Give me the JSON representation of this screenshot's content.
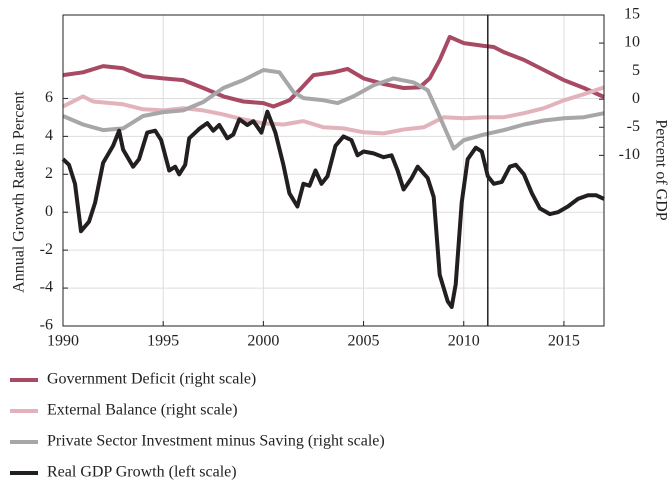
{
  "chart_data": {
    "type": "line",
    "y_label": "Annual Growth Rate in Percent",
    "y2_label": "Percent of GDP",
    "xlim": [
      1990,
      2017
    ],
    "xticks": [
      1990,
      1995,
      2000,
      2005,
      2010,
      2015
    ],
    "ylim": [
      -6,
      10.4
    ],
    "yticks": [
      -6,
      -4,
      -2,
      0,
      2,
      4,
      6
    ],
    "y2lim": [
      -40.4,
      15
    ],
    "y2ticks": [
      -10,
      -5,
      0,
      5,
      10,
      15
    ],
    "grid": true,
    "vline": 2011.2,
    "series": [
      {
        "name": "Government Deficit (right scale)",
        "color": "#a84a63",
        "axis": "y2",
        "x": [
          1990,
          1991,
          1992,
          1993,
          1994,
          1995,
          1996,
          1997,
          1998,
          1999,
          2000,
          2000.5,
          2001.3,
          2001.8,
          2002.5,
          2003.5,
          2004.2,
          2005,
          2006,
          2007,
          2007.8,
          2008.3,
          2008.8,
          2009.3,
          2010,
          2011,
          2011.5,
          2012,
          2013,
          2014,
          2015,
          2016,
          2017
        ],
        "values": [
          4.3,
          4.8,
          5.9,
          5.5,
          4.1,
          3.7,
          3.4,
          2.0,
          0.5,
          -0.4,
          -0.7,
          -1.3,
          -0.2,
          1.6,
          4.3,
          4.8,
          5.4,
          3.7,
          2.7,
          2.0,
          2.1,
          3.7,
          7.0,
          11.1,
          10.0,
          9.5,
          9.3,
          8.4,
          7.0,
          5.2,
          3.4,
          2.0,
          0.4
        ]
      },
      {
        "name": "External Balance (right scale)",
        "color": "#e3b3bb",
        "axis": "y2",
        "x": [
          1990,
          1991,
          1991.5,
          1993,
          1994,
          1995,
          1996,
          1997,
          1998,
          1999,
          2000,
          2001,
          2002,
          2003,
          2004,
          2005,
          2006,
          2007,
          2008,
          2009,
          2010,
          2011,
          2012,
          2013,
          2014,
          2015,
          2016,
          2017
        ],
        "values": [
          -1.3,
          0.5,
          -0.4,
          -0.9,
          -1.8,
          -2.0,
          -1.6,
          -2.0,
          -2.7,
          -3.6,
          -4.3,
          -4.5,
          -3.9,
          -5.0,
          -5.2,
          -5.9,
          -6.1,
          -5.4,
          -5.0,
          -3.2,
          -3.4,
          -3.2,
          -3.2,
          -2.5,
          -1.6,
          -0.2,
          0.9,
          2.1
        ]
      },
      {
        "name": "Private Sector Investment minus Saving (right scale)",
        "color": "#a7a7a9",
        "axis": "y2",
        "x": [
          1990,
          1991,
          1992,
          1993,
          1994,
          1995,
          1996,
          1997,
          1998,
          1999,
          2000,
          2000.8,
          2001.5,
          2002,
          2003,
          2003.7,
          2004.5,
          2005.5,
          2006.5,
          2007.5,
          2008.2,
          2008.7,
          2009.5,
          2010,
          2011,
          2012,
          2013,
          2014,
          2015,
          2016,
          2017
        ],
        "values": [
          -3.0,
          -4.5,
          -5.5,
          -5.2,
          -3.0,
          -2.3,
          -2.0,
          -0.5,
          2.0,
          3.4,
          5.2,
          4.8,
          1.3,
          0.2,
          -0.2,
          -0.7,
          0.5,
          2.5,
          3.7,
          3.0,
          1.6,
          -2.3,
          -8.8,
          -7.3,
          -6.3,
          -5.5,
          -4.5,
          -3.8,
          -3.4,
          -3.2,
          -2.5
        ]
      },
      {
        "name": "Real GDP Growth (left scale)",
        "color": "#231f20",
        "axis": "y",
        "x": [
          1990,
          1990.3,
          1990.6,
          1990.9,
          1991.3,
          1991.6,
          1992,
          1992.5,
          1992.8,
          1993,
          1993.5,
          1993.8,
          1994.2,
          1994.6,
          1994.9,
          1995.3,
          1995.6,
          1995.8,
          1996.1,
          1996.3,
          1996.8,
          1997.2,
          1997.5,
          1997.8,
          1998.2,
          1998.5,
          1998.8,
          1999.2,
          1999.5,
          1999.9,
          2000.2,
          2000.6,
          2001,
          2001.3,
          2001.7,
          2002,
          2002.3,
          2002.6,
          2002.9,
          2003.2,
          2003.6,
          2004,
          2004.4,
          2004.7,
          2005,
          2005.5,
          2006,
          2006.4,
          2006.7,
          2007,
          2007.4,
          2007.7,
          2008.2,
          2008.5,
          2008.8,
          2009.2,
          2009.4,
          2009.6,
          2009.9,
          2010.2,
          2010.6,
          2010.9,
          2011.2,
          2011.5,
          2011.9,
          2012.3,
          2012.6,
          2013,
          2013.4,
          2013.8,
          2014.3,
          2014.7,
          2015.2,
          2015.7,
          2016.2,
          2016.6,
          2017
        ],
        "values": [
          2.8,
          2.5,
          1.5,
          -1.0,
          -0.5,
          0.5,
          2.6,
          3.5,
          4.3,
          3.3,
          2.4,
          2.8,
          4.2,
          4.3,
          3.8,
          2.2,
          2.4,
          2.0,
          2.5,
          3.9,
          4.4,
          4.7,
          4.3,
          4.6,
          3.9,
          4.1,
          4.9,
          4.6,
          4.8,
          4.2,
          5.3,
          4.2,
          2.5,
          1.0,
          0.3,
          1.5,
          1.4,
          2.2,
          1.5,
          1.9,
          3.5,
          4.0,
          3.8,
          3.0,
          3.2,
          3.1,
          2.9,
          3.0,
          2.2,
          1.2,
          1.8,
          2.4,
          1.8,
          0.8,
          -3.3,
          -4.7,
          -5.0,
          -3.8,
          0.5,
          2.8,
          3.4,
          3.2,
          1.9,
          1.5,
          1.6,
          2.4,
          2.5,
          2.0,
          1.0,
          0.2,
          -0.1,
          0.0,
          0.3,
          0.7,
          0.9,
          0.9,
          0.7
        ]
      }
    ]
  }
}
